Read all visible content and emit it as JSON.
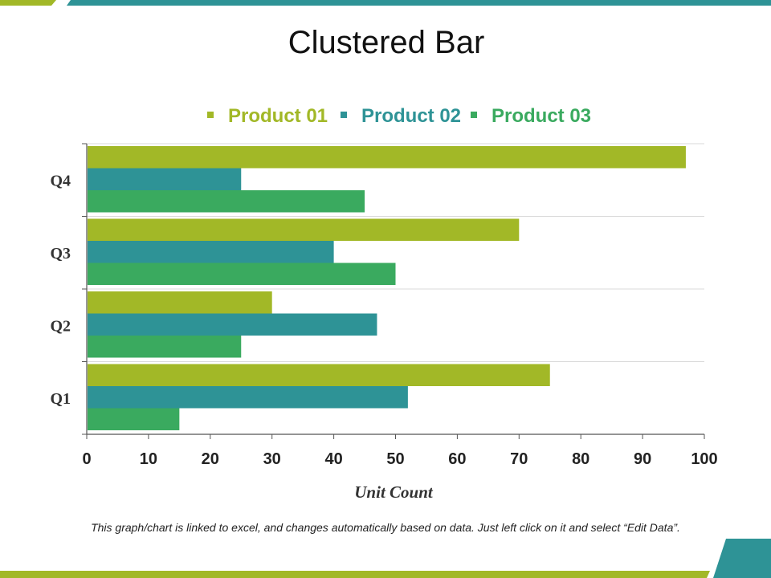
{
  "slide": {
    "title": "Clustered Bar",
    "footnote": "This graph/chart is linked to excel, and changes automatically based on data. Just left click on it and select “Edit Data”."
  },
  "colors": {
    "olive": "#a2b827",
    "teal": "#2e9396",
    "green": "#3aaa5f",
    "top_band": "#2e9396",
    "bottom_band": "#a2b827"
  },
  "chart_data": {
    "type": "bar",
    "orientation": "horizontal",
    "title": "",
    "categories": [
      "Q1",
      "Q2",
      "Q3",
      "Q4"
    ],
    "series": [
      {
        "name": "Product 01",
        "color": "#a2b827",
        "values": [
          75,
          30,
          70,
          97
        ]
      },
      {
        "name": "Product 02",
        "color": "#2e9396",
        "values": [
          52,
          47,
          40,
          25
        ]
      },
      {
        "name": "Product 03",
        "color": "#3aaa5f",
        "values": [
          15,
          25,
          50,
          45
        ]
      }
    ],
    "xlabel": "Unit Count",
    "ylabel": "",
    "xlim": [
      0,
      100
    ],
    "xticks": [
      "0",
      "10",
      "20",
      "30",
      "40",
      "50",
      "60",
      "70",
      "80",
      "90",
      "100"
    ],
    "legend_position": "top",
    "grid": true
  }
}
